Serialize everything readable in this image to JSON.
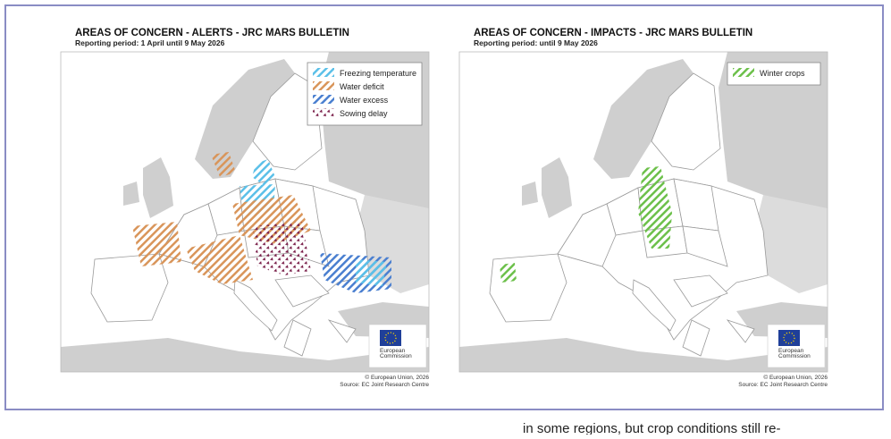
{
  "maps": [
    {
      "title": "AREAS OF CONCERN - ALERTS - JRC MARS BULLETIN",
      "subtitle": "Reporting period: 1 April until 9 May 2026",
      "legend": [
        {
          "label": "Freezing temperature",
          "color": "#5bc0e8"
        },
        {
          "label": "Water deficit",
          "color": "#d9955a"
        },
        {
          "label": "Water excess",
          "color": "#4a7fd0"
        },
        {
          "label": "Sowing delay",
          "color": "#7a1f4a"
        }
      ],
      "logo_text": [
        "European",
        "Commission"
      ],
      "credits": [
        "© European Union, 2026",
        "Source: EC Joint Research Centre"
      ]
    },
    {
      "title": "AREAS OF CONCERN - IMPACTS - JRC MARS BULLETIN",
      "subtitle": "Reporting period: until 9 May 2026",
      "legend": [
        {
          "label": "Winter crops",
          "color": "#6cc04a"
        }
      ],
      "logo_text": [
        "European",
        "Commission"
      ],
      "credits": [
        "© European Union, 2026",
        "Source: EC Joint Research Centre"
      ]
    }
  ],
  "body_text": "in some regions, but crop conditions still re-"
}
